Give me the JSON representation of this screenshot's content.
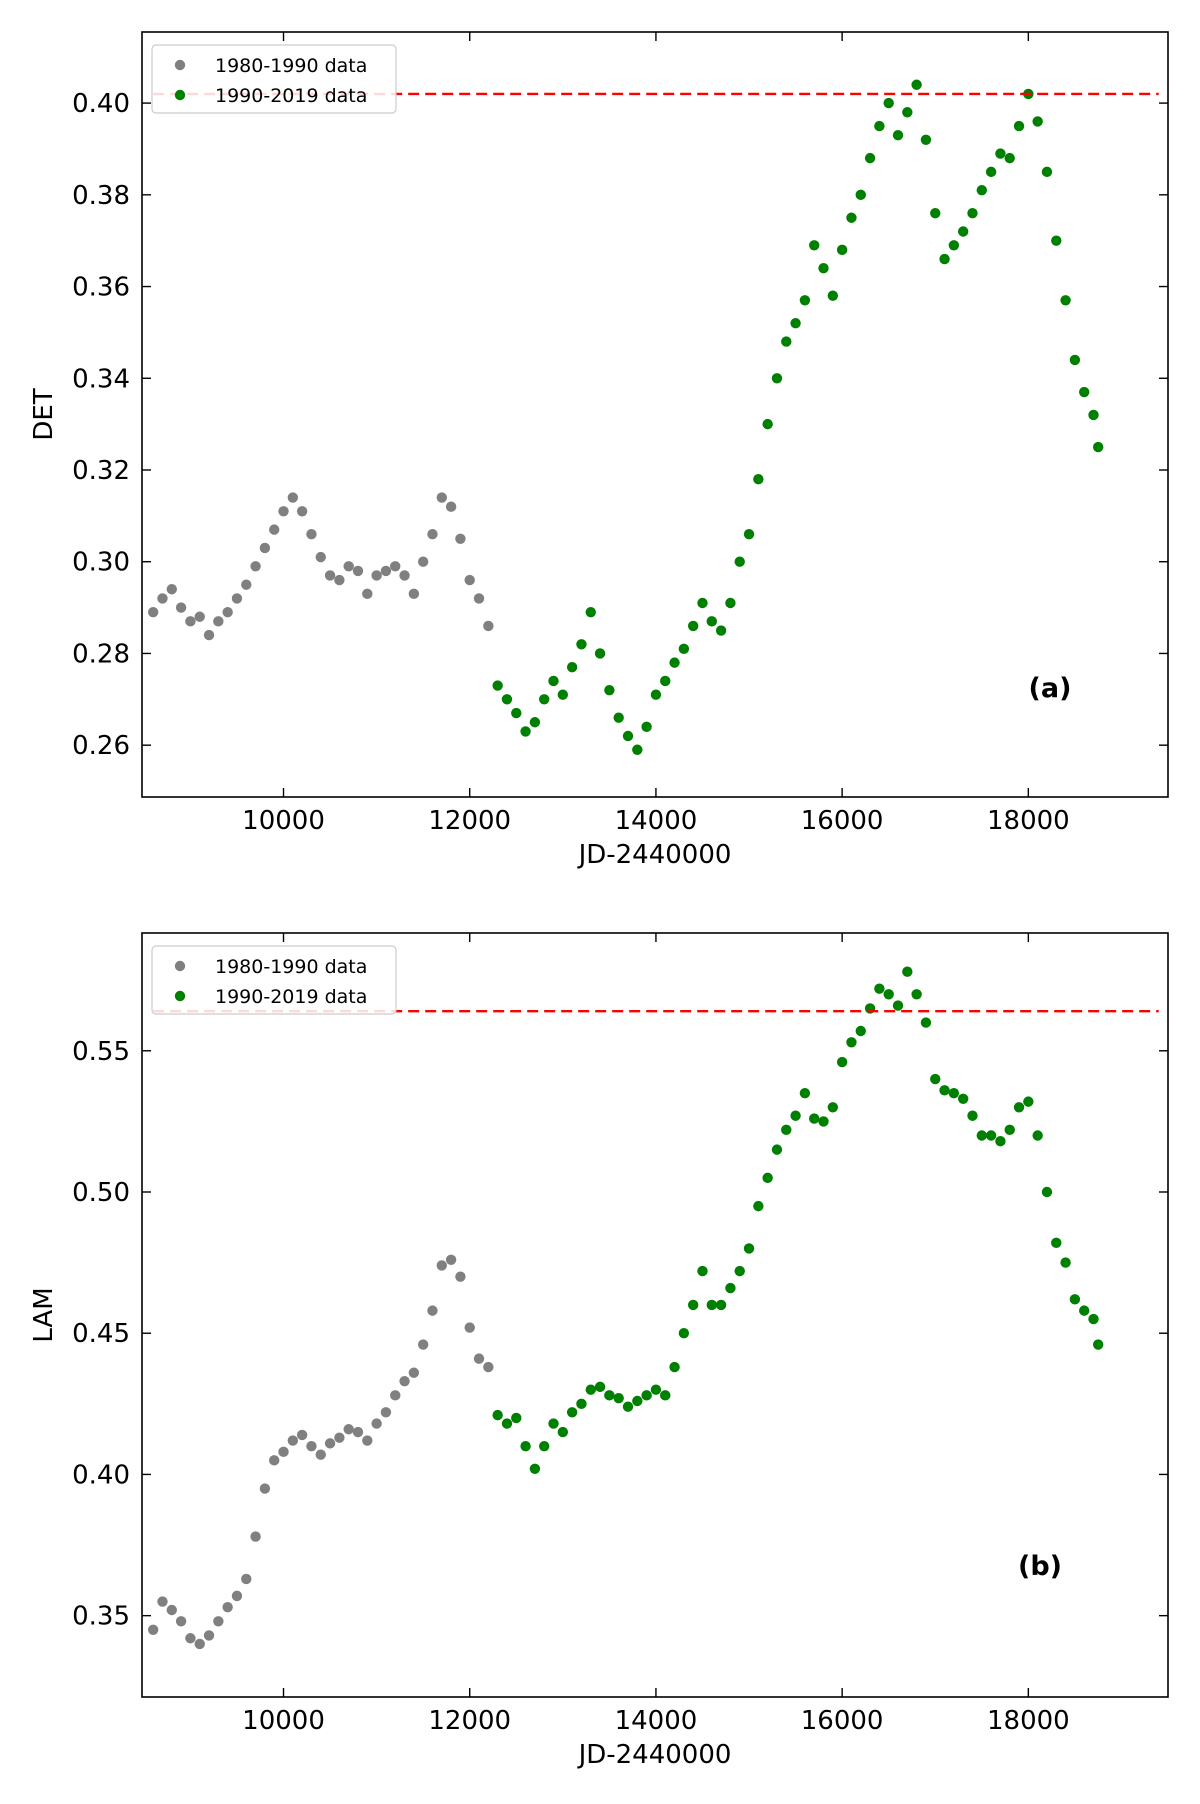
{
  "colors": {
    "series_1980_1990": "#808080",
    "series_1990_2019": "#008000",
    "reference_line": "#ff0000"
  },
  "chart_data": [
    {
      "type": "scatter",
      "panel_label": "(a)",
      "xlabel": "JD-2440000",
      "ylabel": "DET",
      "xlim": [
        8480,
        19500
      ],
      "ylim": [
        0.2487,
        0.4155
      ],
      "xticks": [
        10000,
        12000,
        14000,
        16000,
        18000
      ],
      "xtick_labels": [
        "10000",
        "12000",
        "14000",
        "16000",
        "18000"
      ],
      "yticks": [
        0.26,
        0.28,
        0.3,
        0.32,
        0.34,
        0.36,
        0.38,
        0.4
      ],
      "ytick_labels": [
        "0.26",
        "0.28",
        "0.30",
        "0.32",
        "0.34",
        "0.36",
        "0.38",
        "0.40"
      ],
      "grid": false,
      "legend_position": "top-left",
      "reference_line": {
        "y": 0.402,
        "x_start": 8600,
        "x_end": 19400,
        "style": "dashed"
      },
      "series": [
        {
          "name": "1980-1990 data",
          "x": [
            8600,
            8700,
            8800,
            8900,
            9000,
            9100,
            9200,
            9300,
            9400,
            9500,
            9600,
            9700,
            9800,
            9900,
            10000,
            10100,
            10200,
            10300,
            10400,
            10500,
            10600,
            10700,
            10800,
            10900,
            11000,
            11100,
            11200,
            11300,
            11400,
            11500,
            11600,
            11700,
            11800,
            11900,
            12000,
            12100,
            12200
          ],
          "y": [
            0.289,
            0.292,
            0.294,
            0.29,
            0.287,
            0.288,
            0.284,
            0.287,
            0.289,
            0.292,
            0.295,
            0.299,
            0.303,
            0.307,
            0.311,
            0.314,
            0.311,
            0.306,
            0.301,
            0.297,
            0.296,
            0.299,
            0.298,
            0.293,
            0.297,
            0.298,
            0.299,
            0.297,
            0.293,
            0.3,
            0.306,
            0.314,
            0.312,
            0.305,
            0.296,
            0.292,
            0.286
          ]
        },
        {
          "name": "1990-2019 data",
          "x": [
            12300,
            12400,
            12500,
            12600,
            12700,
            12800,
            12900,
            13000,
            13100,
            13200,
            13300,
            13400,
            13500,
            13600,
            13700,
            13800,
            13900,
            14000,
            14100,
            14200,
            14300,
            14400,
            14500,
            14600,
            14700,
            14800,
            14900,
            15000,
            15100,
            15200,
            15300,
            15400,
            15500,
            15600,
            15700,
            15800,
            15900,
            16000,
            16100,
            16200,
            16300,
            16400,
            16500,
            16600,
            16700,
            16800,
            16900,
            17000,
            17100,
            17200,
            17300,
            17400,
            17500,
            17600,
            17700,
            17800,
            17900,
            18000,
            18100,
            18200,
            18300,
            18400,
            18500,
            18600,
            18700,
            18750
          ],
          "y": [
            0.273,
            0.27,
            0.267,
            0.263,
            0.265,
            0.27,
            0.274,
            0.271,
            0.277,
            0.282,
            0.289,
            0.28,
            0.272,
            0.266,
            0.262,
            0.259,
            0.264,
            0.271,
            0.274,
            0.278,
            0.281,
            0.286,
            0.291,
            0.287,
            0.285,
            0.291,
            0.3,
            0.306,
            0.318,
            0.33,
            0.34,
            0.348,
            0.352,
            0.357,
            0.369,
            0.364,
            0.358,
            0.368,
            0.375,
            0.38,
            0.388,
            0.395,
            0.4,
            0.393,
            0.398,
            0.404,
            0.392,
            0.376,
            0.366,
            0.369,
            0.372,
            0.376,
            0.381,
            0.385,
            0.389,
            0.388,
            0.395,
            0.402,
            0.396,
            0.385,
            0.37,
            0.357,
            0.344,
            0.337,
            0.332,
            0.325
          ]
        }
      ]
    },
    {
      "type": "scatter",
      "panel_label": "(b)",
      "xlabel": "JD-2440000",
      "ylabel": "LAM",
      "xlim": [
        8480,
        19500
      ],
      "ylim": [
        0.3212,
        0.5917
      ],
      "xticks": [
        10000,
        12000,
        14000,
        16000,
        18000
      ],
      "xtick_labels": [
        "10000",
        "12000",
        "14000",
        "16000",
        "18000"
      ],
      "yticks": [
        0.35,
        0.4,
        0.45,
        0.5,
        0.55
      ],
      "ytick_labels": [
        "0.35",
        "0.40",
        "0.45",
        "0.50",
        "0.55"
      ],
      "grid": false,
      "legend_position": "top-left",
      "reference_line": {
        "y": 0.564,
        "x_start": 8600,
        "x_end": 19400,
        "style": "dashed"
      },
      "series": [
        {
          "name": "1980-1990 data",
          "x": [
            8600,
            8700,
            8800,
            8900,
            9000,
            9100,
            9200,
            9300,
            9400,
            9500,
            9600,
            9700,
            9800,
            9900,
            10000,
            10100,
            10200,
            10300,
            10400,
            10500,
            10600,
            10700,
            10800,
            10900,
            11000,
            11100,
            11200,
            11300,
            11400,
            11500,
            11600,
            11700,
            11800,
            11900,
            12000,
            12100,
            12200
          ],
          "y": [
            0.345,
            0.355,
            0.352,
            0.348,
            0.342,
            0.34,
            0.343,
            0.348,
            0.353,
            0.357,
            0.363,
            0.378,
            0.395,
            0.405,
            0.408,
            0.412,
            0.414,
            0.41,
            0.407,
            0.411,
            0.413,
            0.416,
            0.415,
            0.412,
            0.418,
            0.422,
            0.428,
            0.433,
            0.436,
            0.446,
            0.458,
            0.474,
            0.476,
            0.47,
            0.452,
            0.441,
            0.438
          ]
        },
        {
          "name": "1990-2019 data",
          "x": [
            12300,
            12400,
            12500,
            12600,
            12700,
            12800,
            12900,
            13000,
            13100,
            13200,
            13300,
            13400,
            13500,
            13600,
            13700,
            13800,
            13900,
            14000,
            14100,
            14200,
            14300,
            14400,
            14500,
            14600,
            14700,
            14800,
            14900,
            15000,
            15100,
            15200,
            15300,
            15400,
            15500,
            15600,
            15700,
            15800,
            15900,
            16000,
            16100,
            16200,
            16300,
            16400,
            16500,
            16600,
            16700,
            16800,
            16900,
            17000,
            17100,
            17200,
            17300,
            17400,
            17500,
            17600,
            17700,
            17800,
            17900,
            18000,
            18100,
            18200,
            18300,
            18400,
            18500,
            18600,
            18700,
            18750
          ],
          "y": [
            0.421,
            0.418,
            0.42,
            0.41,
            0.402,
            0.41,
            0.418,
            0.415,
            0.422,
            0.425,
            0.43,
            0.431,
            0.428,
            0.427,
            0.424,
            0.426,
            0.428,
            0.43,
            0.428,
            0.438,
            0.45,
            0.46,
            0.472,
            0.46,
            0.46,
            0.466,
            0.472,
            0.48,
            0.495,
            0.505,
            0.515,
            0.522,
            0.527,
            0.535,
            0.526,
            0.525,
            0.53,
            0.546,
            0.553,
            0.557,
            0.565,
            0.572,
            0.57,
            0.566,
            0.578,
            0.57,
            0.56,
            0.54,
            0.536,
            0.535,
            0.533,
            0.527,
            0.52,
            0.52,
            0.518,
            0.522,
            0.53,
            0.532,
            0.52,
            0.5,
            0.482,
            0.475,
            0.462,
            0.458,
            0.455,
            0.446
          ]
        }
      ]
    }
  ]
}
